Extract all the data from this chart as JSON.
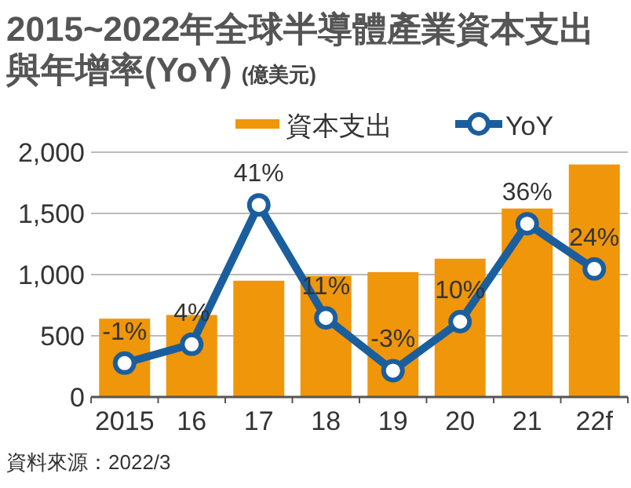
{
  "chart_data": {
    "type": "bar",
    "title": "2015~2022年全球半導體產業資本支出與年增率(YoY)",
    "ylabel": "(億美元)",
    "categories": [
      "2015",
      "16",
      "17",
      "18",
      "19",
      "20",
      "21",
      "22f"
    ],
    "series": [
      {
        "name": "資本支出",
        "color": "#f0960a",
        "values": [
          640,
          670,
          950,
          990,
          1020,
          1130,
          1540,
          1900
        ]
      },
      {
        "name": "YoY",
        "type": "line",
        "axis": "y2",
        "color": "#1a5e9e",
        "marker": "circle",
        "values": [
          -1,
          4,
          41,
          11,
          -3,
          10,
          36,
          24
        ],
        "value_labels": [
          "-1%",
          "4%",
          "41%",
          "11%",
          "-3%",
          "10%",
          "36%",
          "24%"
        ]
      }
    ],
    "ylim": [
      0,
      2000
    ],
    "yticks": [
      {
        "value": 0,
        "label": "0"
      },
      {
        "value": 500,
        "label": "500"
      },
      {
        "value": 1000,
        "label": "1,000"
      },
      {
        "value": 1500,
        "label": "1,500"
      },
      {
        "value": 2000,
        "label": "2,000"
      }
    ],
    "y2lim": [
      -10,
      55
    ],
    "grid": "y",
    "legend": "top right",
    "annotations": [
      "資料來源：2022/3"
    ]
  }
}
